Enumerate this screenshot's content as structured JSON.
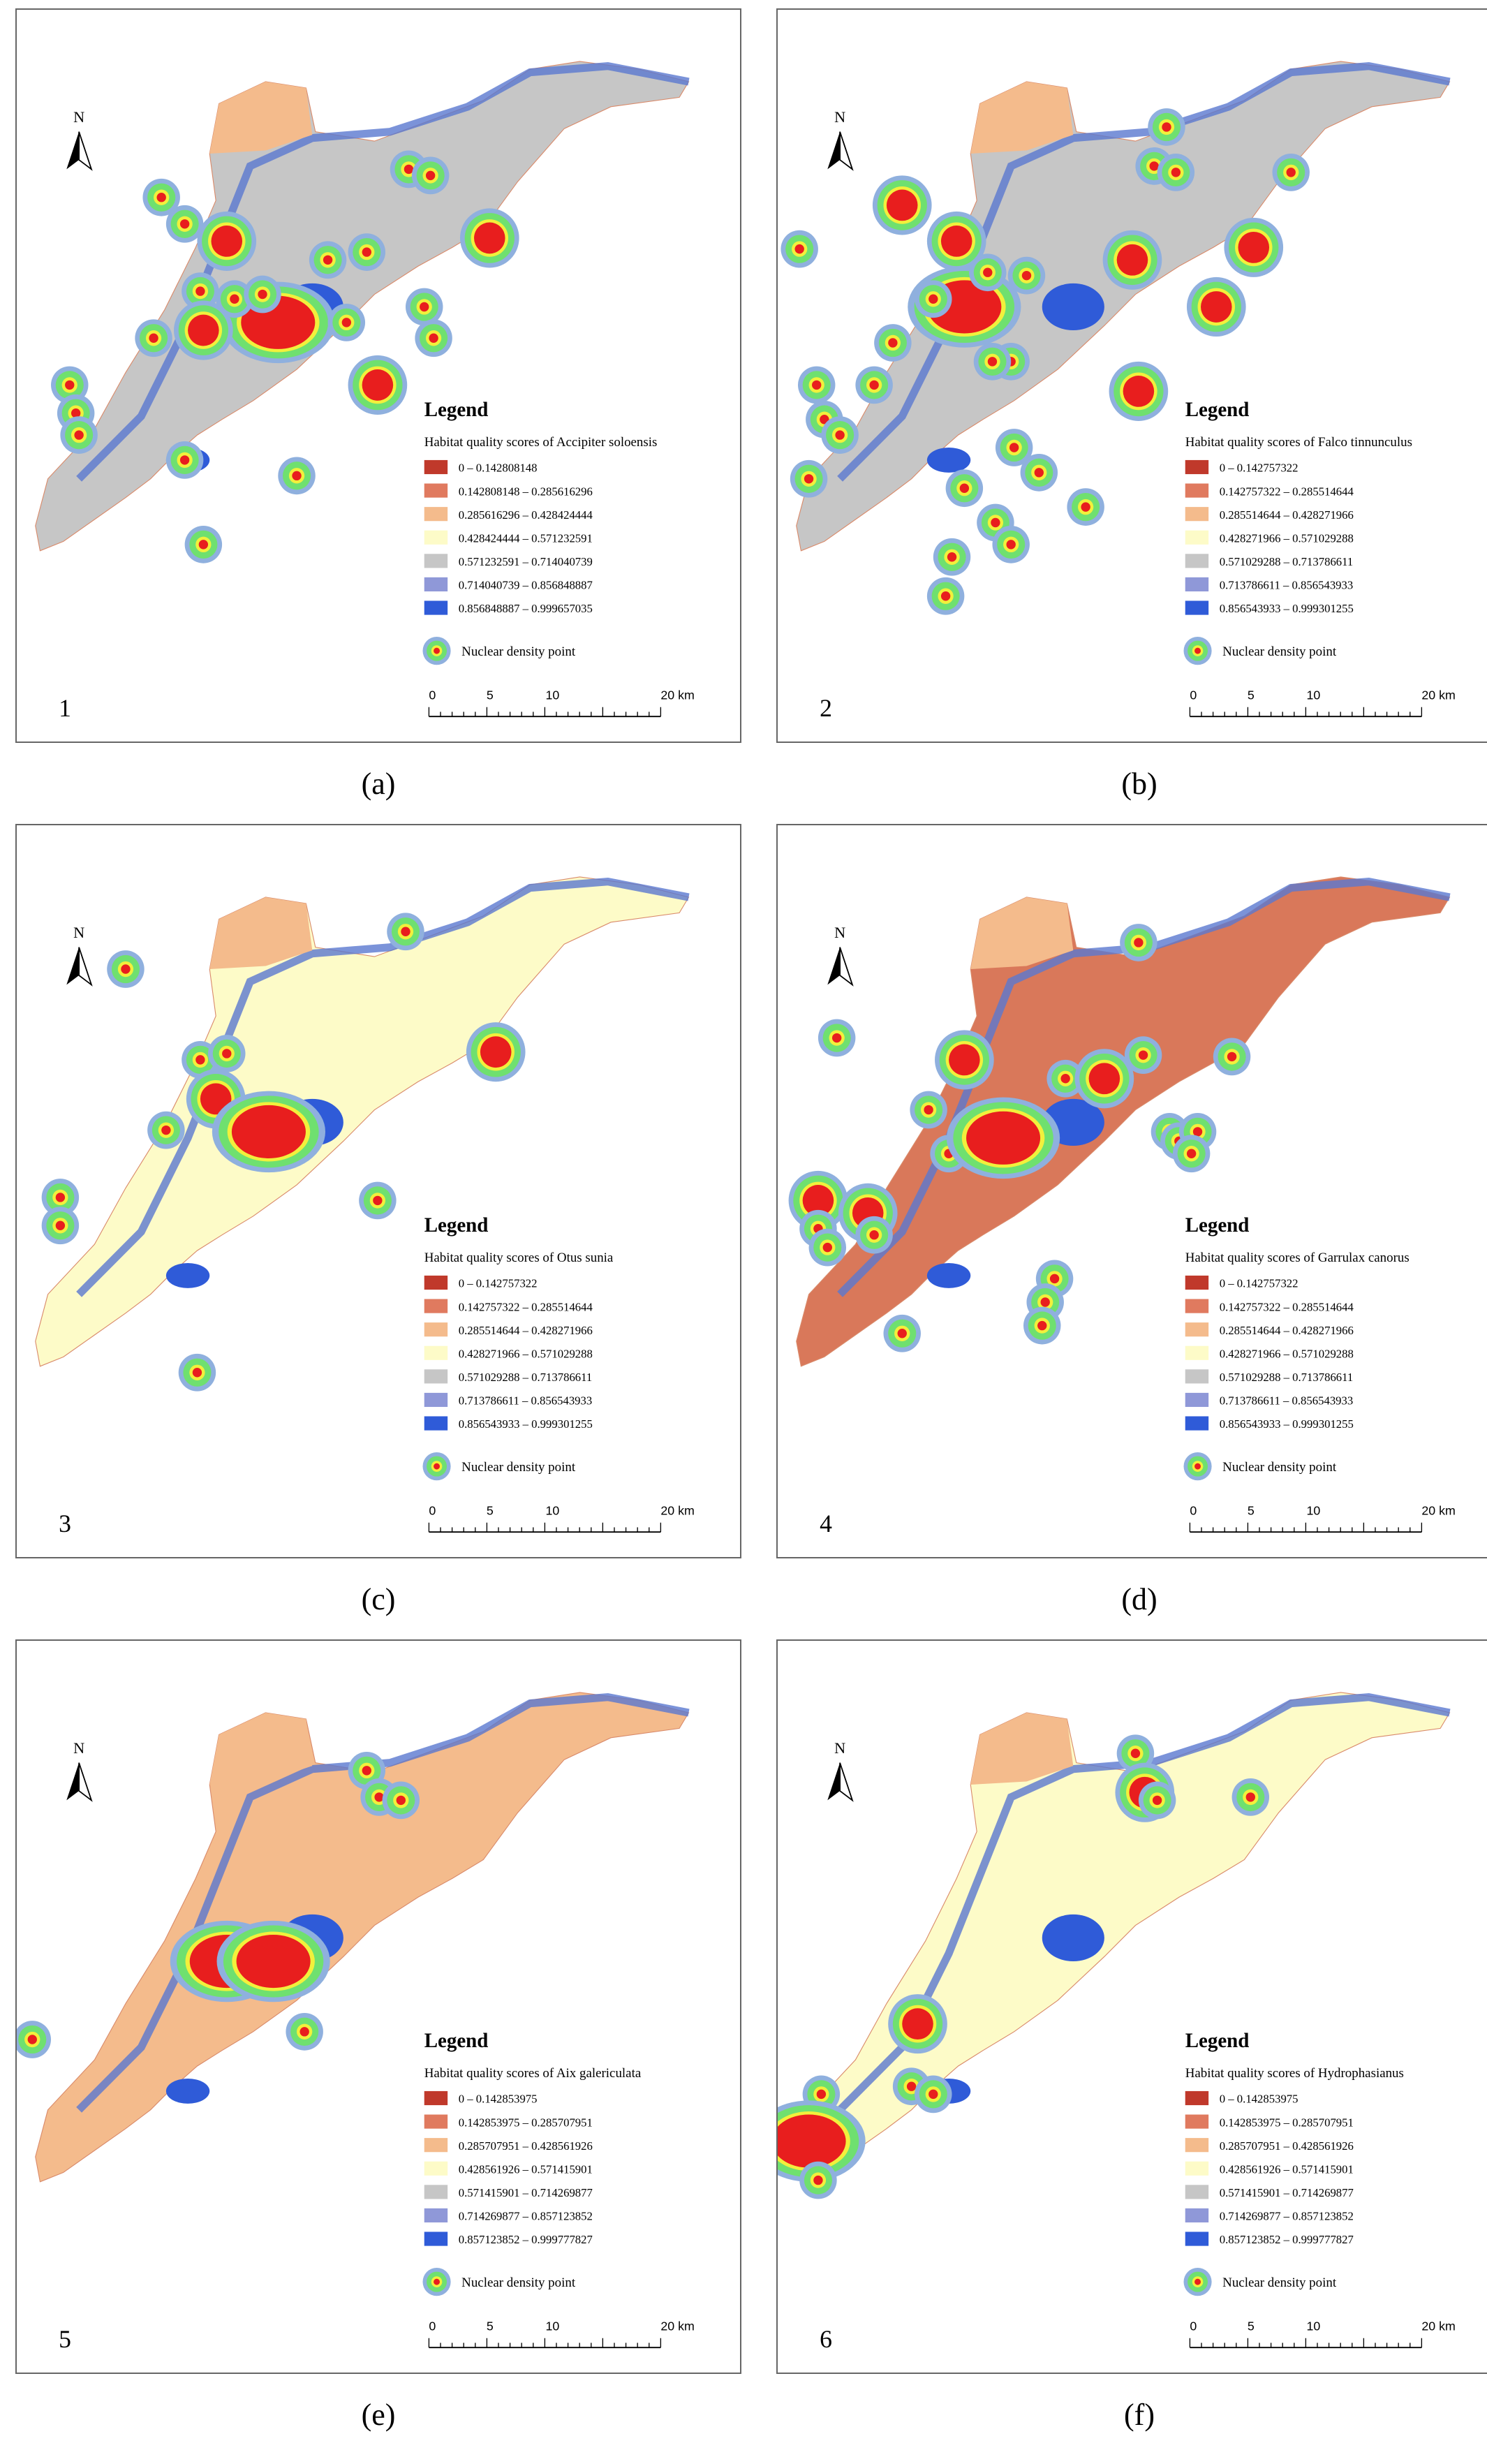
{
  "north": "N",
  "legend_colors": [
    "#c0392b",
    "#e07a5f",
    "#f4bb8c",
    "#fdfbc8",
    "#c6c6c6",
    "#8f98d8",
    "#2f5bd8"
  ],
  "panels": [
    {
      "number": "1",
      "caption": "(a)",
      "base_color": "#c6c6c6",
      "legend_title": "Legend",
      "legend_subtitle": "Habitat quality scores of Accipiter soloensis",
      "classes": [
        "0 – 0.142808148",
        "0.142808148 – 0.285616296",
        "0.285616296 – 0.428424444",
        "0.428424444 – 0.571232591",
        "0.571232591 – 0.714040739",
        "0.714040739 – 0.856848887",
        "0.856848887 – 0.999657035"
      ],
      "density_label": "Nuclear density point",
      "scale": [
        "0",
        "5",
        "10",
        "20 km"
      ]
    },
    {
      "number": "2",
      "caption": "(b)",
      "base_color": "#c6c6c6",
      "legend_title": "Legend",
      "legend_subtitle": "Habitat quality scores of Falco tinnunculus",
      "classes": [
        "0 – 0.142757322",
        "0.142757322 – 0.285514644",
        "0.285514644 – 0.428271966",
        "0.428271966 – 0.571029288",
        "0.571029288 – 0.713786611",
        "0.713786611 – 0.856543933",
        "0.856543933 – 0.999301255"
      ],
      "density_label": "Nuclear density point",
      "scale": [
        "0",
        "5",
        "10",
        "20 km"
      ]
    },
    {
      "number": "3",
      "caption": "(c)",
      "base_color": "#fdfbc8",
      "legend_title": "Legend",
      "legend_subtitle": "Habitat quality scores of Otus sunia",
      "classes": [
        "0 – 0.142757322",
        "0.142757322 – 0.285514644",
        "0.285514644 – 0.428271966",
        "0.428271966 – 0.571029288",
        "0.571029288 – 0.713786611",
        "0.713786611 – 0.856543933",
        "0.856543933 – 0.999301255"
      ],
      "density_label": "Nuclear density point",
      "scale": [
        "0",
        "5",
        "10",
        "20 km"
      ]
    },
    {
      "number": "4",
      "caption": "(d)",
      "base_color": "#d9785a",
      "legend_title": "Legend",
      "legend_subtitle": "Habitat quality scores of Garrulax canorus",
      "classes": [
        "0 – 0.142757322",
        "0.142757322 – 0.285514644",
        "0.285514644 – 0.428271966",
        "0.428271966 – 0.571029288",
        "0.571029288 – 0.713786611",
        "0.713786611 – 0.856543933",
        "0.856543933 – 0.999301255"
      ],
      "density_label": "Nuclear density point",
      "scale": [
        "0",
        "5",
        "10",
        "20 km"
      ]
    },
    {
      "number": "5",
      "caption": "(e)",
      "base_color": "#f4bb8c",
      "legend_title": "Legend",
      "legend_subtitle": "Habitat quality scores of Aix galericulata",
      "classes": [
        "0 – 0.142853975",
        "0.142853975 – 0.285707951",
        "0.285707951 – 0.428561926",
        "0.428561926 – 0.571415901",
        "0.571415901 – 0.714269877",
        "0.714269877 – 0.857123852",
        "0.857123852 – 0.999777827"
      ],
      "density_label": "Nuclear density point",
      "scale": [
        "0",
        "5",
        "10",
        "20 km"
      ]
    },
    {
      "number": "6",
      "caption": "(f)",
      "base_color": "#fdfbc8",
      "legend_title": "Legend",
      "legend_subtitle": "Habitat quality scores of Hydrophasianus",
      "classes": [
        "0 – 0.142853975",
        "0.142853975 – 0.285707951",
        "0.285707951 – 0.428561926",
        "0.428561926 – 0.571415901",
        "0.571415901 – 0.714269877",
        "0.714269877 – 0.857123852",
        "0.857123852 – 0.999777827"
      ],
      "density_label": "Nuclear density point",
      "scale": [
        "0",
        "5",
        "10",
        "20 km"
      ]
    }
  ]
}
